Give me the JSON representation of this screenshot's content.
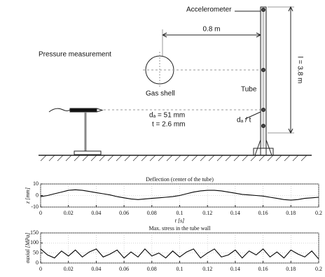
{
  "diagram": {
    "accelerometer": "Accelerometer",
    "distance": "0.8 m",
    "pressure": "Pressure measurement",
    "gas_shell": "Gas shell",
    "tube": "Tube",
    "length": "l = 3.8 m",
    "diameter": "dₐ = 51 mm",
    "thickness": "t = 2.6 mm",
    "ratio": "dₐ / t"
  },
  "chart_data": [
    {
      "type": "line",
      "title": "Deflection (center of the tube)",
      "ylabel": "z [mm]",
      "xlabel": "t [s]",
      "color": "#000000",
      "grid": true,
      "x": [
        0,
        0.005,
        0.01,
        0.015,
        0.02,
        0.025,
        0.03,
        0.035,
        0.04,
        0.045,
        0.05,
        0.055,
        0.06,
        0.065,
        0.07,
        0.075,
        0.08,
        0.085,
        0.09,
        0.095,
        0.1,
        0.105,
        0.11,
        0.115,
        0.12,
        0.125,
        0.13,
        0.135,
        0.14,
        0.145,
        0.15,
        0.155,
        0.16,
        0.165,
        0.17,
        0.175,
        0.18,
        0.185,
        0.19,
        0.195,
        0.2
      ],
      "values": [
        -1,
        0,
        1.5,
        3,
        4.5,
        5,
        4.5,
        3.5,
        2.5,
        1.5,
        0.5,
        -1,
        -2,
        -3,
        -3.5,
        -3,
        -2.5,
        -2,
        -1.5,
        -1,
        0,
        1.5,
        3,
        4,
        4.5,
        4.5,
        4,
        3,
        2,
        1,
        0.5,
        0,
        -0.5,
        -1.5,
        -2.5,
        -3.5,
        -4,
        -3.5,
        -2.5,
        -2,
        -1.5
      ],
      "xlim": [
        0,
        0.2
      ],
      "xticks": [
        0,
        0.02,
        0.04,
        0.06,
        0.08,
        0.1,
        0.12,
        0.14,
        0.16,
        0.18,
        0.2
      ],
      "ylim": [
        -10,
        10
      ],
      "yticks": [
        -10,
        0,
        10
      ]
    },
    {
      "type": "line",
      "title": "Max. stress in the tube wall",
      "ylabel": "σaxial [MPa]",
      "color": "#000000",
      "grid": true,
      "x": [
        0,
        0.005,
        0.01,
        0.015,
        0.02,
        0.025,
        0.03,
        0.035,
        0.04,
        0.045,
        0.05,
        0.055,
        0.06,
        0.065,
        0.07,
        0.075,
        0.08,
        0.085,
        0.09,
        0.095,
        0.1,
        0.105,
        0.11,
        0.115,
        0.12,
        0.125,
        0.13,
        0.135,
        0.14,
        0.145,
        0.15,
        0.155,
        0.16,
        0.165,
        0.17,
        0.175,
        0.18,
        0.185,
        0.19,
        0.195,
        0.2
      ],
      "values": [
        70,
        40,
        25,
        60,
        35,
        65,
        30,
        55,
        70,
        30,
        45,
        65,
        25,
        55,
        30,
        70,
        35,
        50,
        25,
        60,
        30,
        55,
        70,
        25,
        50,
        70,
        30,
        40,
        65,
        25,
        60,
        40,
        70,
        30,
        55,
        25,
        65,
        45,
        30,
        60,
        20
      ],
      "xlim": [
        0,
        0.2
      ],
      "xticks": [
        0,
        0.02,
        0.04,
        0.06,
        0.08,
        0.1,
        0.12,
        0.14,
        0.16,
        0.18,
        0.2
      ],
      "ylim": [
        0,
        150
      ],
      "yticks": [
        0,
        50,
        100,
        150
      ]
    }
  ]
}
